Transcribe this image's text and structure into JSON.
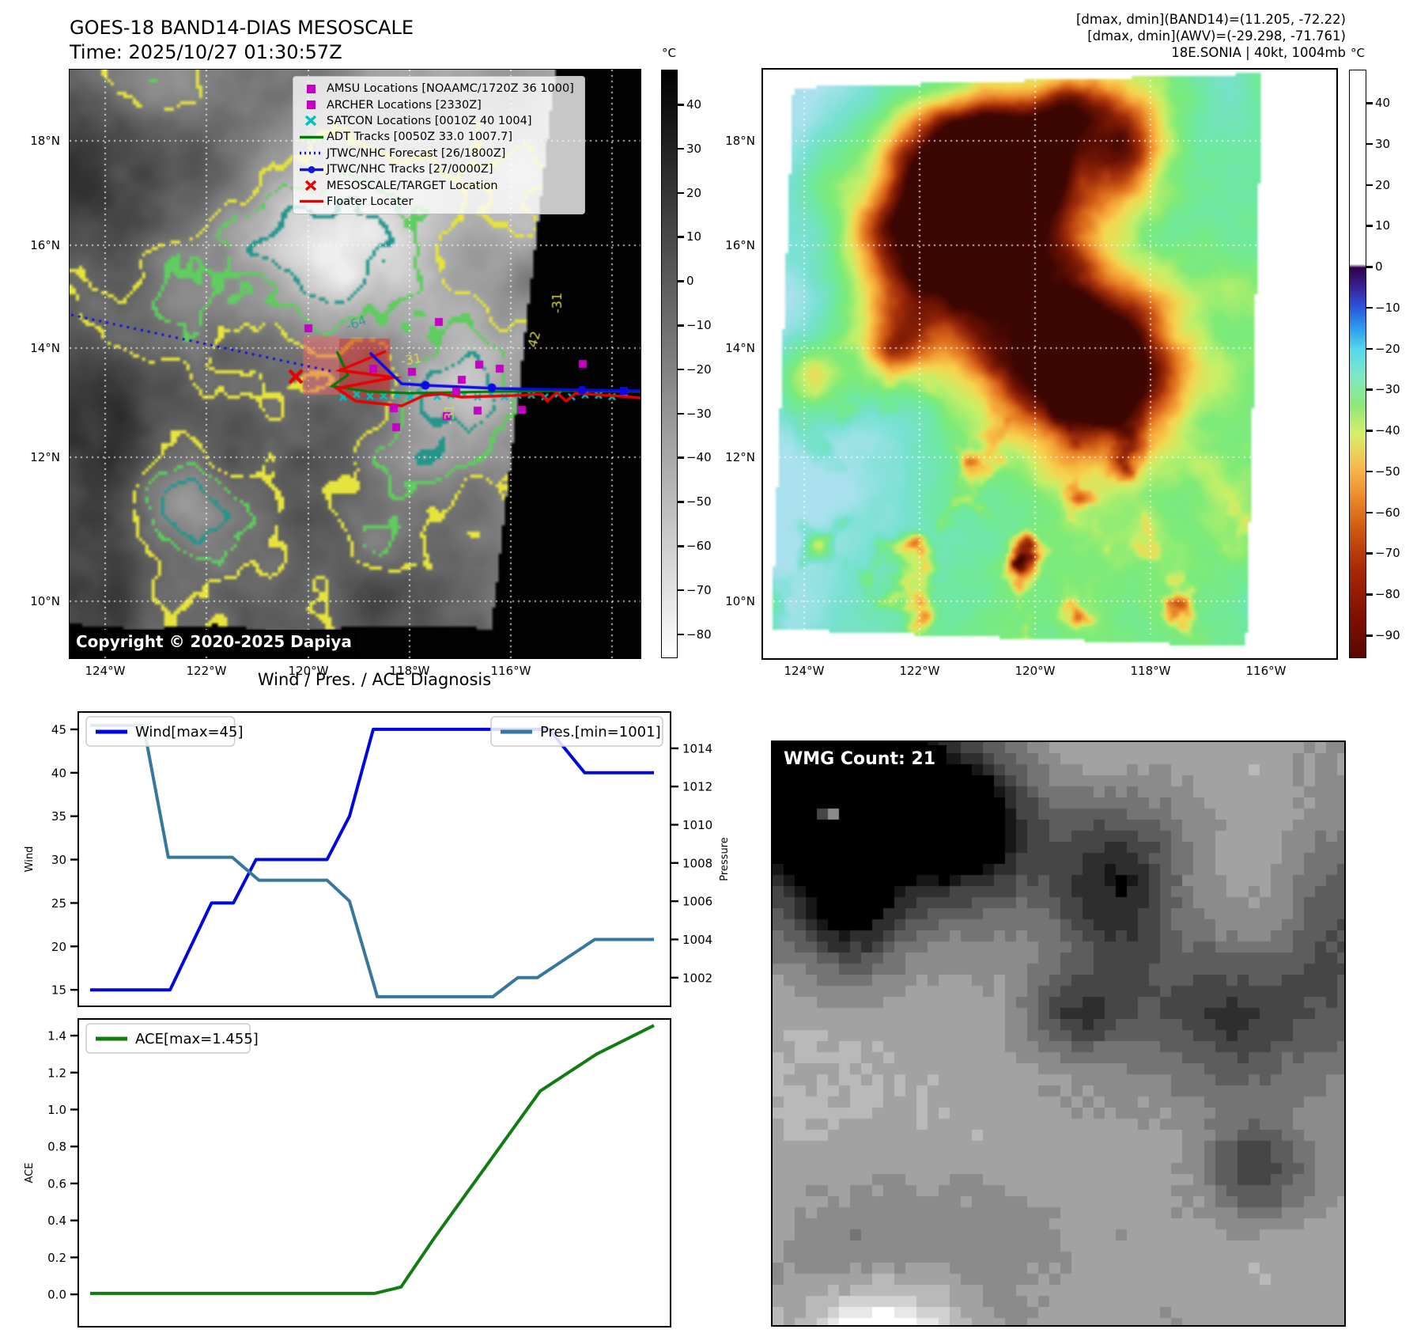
{
  "header": {
    "title": "GOES-18 BAND14-DIAS MESOSCALE",
    "time": "Time: 2025/10/27 01:30:57Z"
  },
  "info": {
    "line1": "[dmax, dmin](BAND14)=(11.205, -72.22)",
    "line2": "[dmax, dmin](AWV)=(-29.298, -71.761)",
    "line3": "18E.SONIA | 40kt, 1004mb"
  },
  "map_left": {
    "copyright": "Copyright © 2020-2025 Dapiya",
    "lat_labels": [
      "18°N",
      "16°N",
      "14°N",
      "12°N",
      "10°N"
    ],
    "lon_labels": [
      "124°W",
      "122°W",
      "120°W",
      "118°W",
      "116°W"
    ],
    "legend": [
      {
        "type": "square",
        "color": "#c400c4",
        "label": "AMSU Locations [NOAAMC/1720Z 36 1000]"
      },
      {
        "type": "square",
        "color": "#c400c4",
        "label": "ARCHER Locations [2330Z]"
      },
      {
        "type": "xmark",
        "color": "#00c2c2",
        "label": "SATCON Locations [0010Z 40 1004]"
      },
      {
        "type": "line",
        "color": "#007a00",
        "label": "ADT Tracks [0050Z 33.0 1007.7]"
      },
      {
        "type": "dotted",
        "color": "#1414e0",
        "label": "JTWC/NHC Forecast [26/1800Z]"
      },
      {
        "type": "line-dot",
        "color": "#1414e0",
        "label": "JTWC/NHC Tracks [27/0000Z]"
      },
      {
        "type": "xmark",
        "color": "#e80000",
        "label": "MESOSCALE/TARGET Location"
      },
      {
        "type": "line",
        "color": "#e80000",
        "label": "Floater Locater"
      }
    ],
    "contour_labels": [
      {
        "text": "-64",
        "color": "#2f9e8f"
      },
      {
        "text": "-31",
        "color": "#d8d850"
      },
      {
        "text": "42",
        "color": "#d8d850"
      },
      {
        "text": "-31",
        "color": "#d8d850"
      },
      {
        "text": "-31",
        "color": "#d8d850"
      }
    ],
    "colorbar": {
      "title": "°C",
      "tick_labels": [
        "40",
        "30",
        "20",
        "10",
        "0",
        "−10",
        "−20",
        "−30",
        "−40",
        "−50",
        "−60",
        "−70",
        "−80"
      ]
    }
  },
  "map_right": {
    "lat_labels": [
      "18°N",
      "16°N",
      "14°N",
      "12°N",
      "10°N"
    ],
    "lon_labels": [
      "124°W",
      "122°W",
      "120°W",
      "118°W",
      "116°W"
    ],
    "colorbar": {
      "title": "°C",
      "tick_labels": [
        "40",
        "30",
        "20",
        "10",
        "0",
        "−10",
        "−20",
        "−30",
        "−40",
        "−50",
        "−60",
        "−70",
        "−80",
        "−90"
      ]
    }
  },
  "charts": {
    "suptitle": "Wind / Pres. / ACE Diagnosis"
  },
  "chart_data": [
    {
      "id": "wind_pres",
      "type": "line",
      "title": "Wind / Pres. / ACE Diagnosis",
      "left_axis": {
        "label": "Wind",
        "ticks": [
          15,
          20,
          25,
          30,
          35,
          40,
          45
        ],
        "lim": [
          13.1,
          47.0
        ]
      },
      "right_axis": {
        "label": "Pressure",
        "ticks": [
          1002,
          1004,
          1006,
          1008,
          1010,
          1012,
          1014
        ],
        "lim": [
          1000.5,
          1015.9
        ]
      },
      "series": [
        {
          "name": "Wind[max=45]",
          "color": "#0008dd",
          "axis": "left",
          "legend_pos": "left",
          "points": [
            [
              0.02,
              15
            ],
            [
              0.155,
              15
            ],
            [
              0.225,
              25
            ],
            [
              0.262,
              25
            ],
            [
              0.3,
              30
            ],
            [
              0.42,
              30
            ],
            [
              0.458,
              35
            ],
            [
              0.498,
              45
            ],
            [
              0.795,
              45
            ],
            [
              0.855,
              40
            ],
            [
              0.972,
              40
            ]
          ]
        },
        {
          "name": "Pres.[min=1001]",
          "color": "#35779f",
          "axis": "right",
          "legend_pos": "right",
          "points": [
            [
              0.02,
              1015.2
            ],
            [
              0.11,
              1015.2
            ],
            [
              0.152,
              1008.3
            ],
            [
              0.26,
              1008.3
            ],
            [
              0.305,
              1007.1
            ],
            [
              0.42,
              1007.1
            ],
            [
              0.458,
              1006.0
            ],
            [
              0.505,
              1001.0
            ],
            [
              0.7,
              1001.0
            ],
            [
              0.742,
              1002.0
            ],
            [
              0.775,
              1002.0
            ],
            [
              0.872,
              1004.0
            ],
            [
              0.972,
              1004.0
            ]
          ]
        }
      ]
    },
    {
      "id": "ace",
      "type": "line",
      "left_axis": {
        "label": "ACE",
        "ticks": [
          0,
          0.2,
          0.4,
          0.6,
          0.8,
          1.0,
          1.2,
          1.4
        ],
        "tick_labels": [
          "0.0",
          "0.2",
          "0.4",
          "0.6",
          "0.8",
          "1.0",
          "1.2",
          "1.4"
        ],
        "lim": [
          -0.175,
          1.49
        ]
      },
      "series": [
        {
          "name": "ACE[max=1.455]",
          "color": "#0f7d0f",
          "axis": "left",
          "legend_pos": "left",
          "points": [
            [
              0.02,
              0.005
            ],
            [
              0.5,
              0.005
            ],
            [
              0.545,
              0.04
            ],
            [
              0.6,
              0.3
            ],
            [
              0.78,
              1.1
            ],
            [
              0.875,
              1.3
            ],
            [
              0.972,
              1.455
            ]
          ]
        }
      ]
    }
  ],
  "wmg": {
    "label": "WMG Count: 21"
  }
}
